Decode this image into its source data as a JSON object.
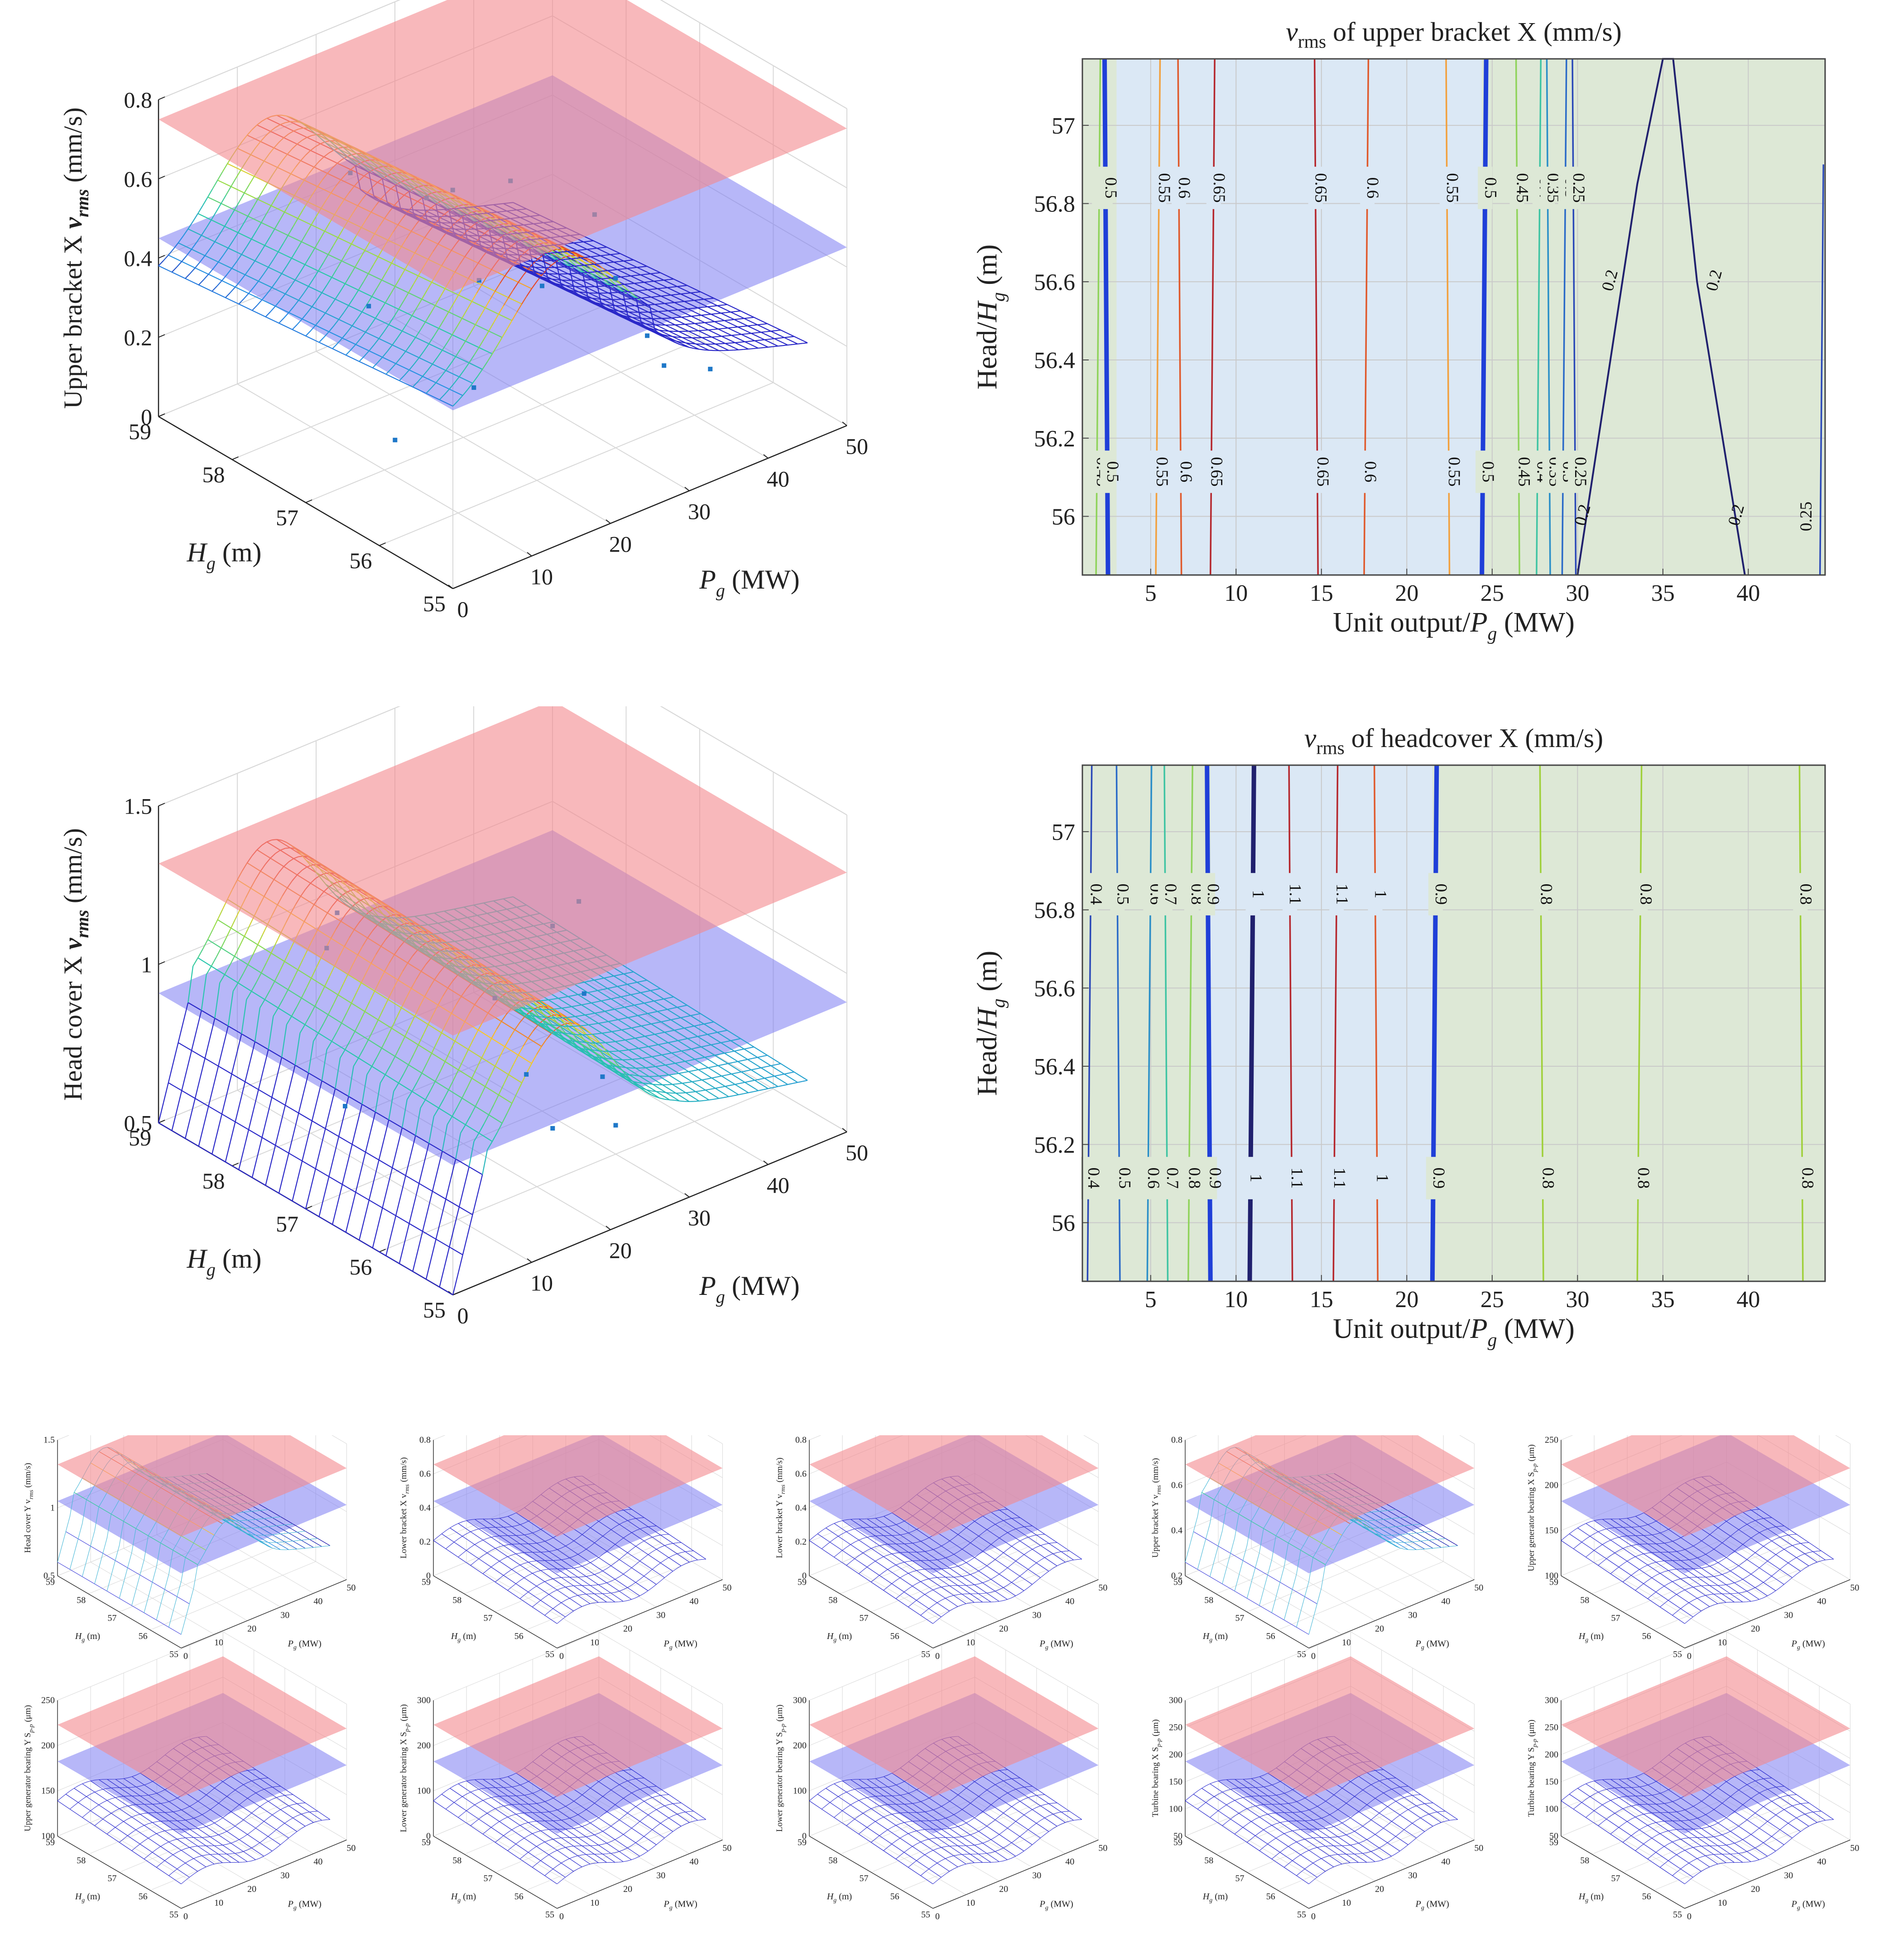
{
  "colors": {
    "upper_plane": "#f4888d",
    "lower_plane": "#7b7cf2",
    "dot": "#1f78c8",
    "blue_region": "#dbe8f5",
    "green_region": "#dde8d6",
    "bold_line": "#1f3fd8"
  },
  "chart_data": [
    {
      "id": "surf_upper_bracket_x",
      "type": "surface",
      "zlabel_prefix": "Upper bracket X ",
      "zlabel_sym": "v",
      "zlabel_sub": "rms",
      "zlabel_suffix": " (mm/s)",
      "xlabel_sym": "H",
      "xlabel_sub": "g",
      "xlabel_unit": " (m)",
      "ylabel_sym": "P",
      "ylabel_sub": "g",
      "ylabel_unit": " (MW)",
      "z_ticks": [
        "0",
        "0.2",
        "0.4",
        "0.6",
        "0.8"
      ],
      "h_ticks": [
        "59",
        "58",
        "57",
        "56",
        "55"
      ],
      "p_ticks": [
        "0",
        "10",
        "20",
        "30",
        "40",
        "50"
      ],
      "upper_limit": 0.75,
      "lower_limit": 0.45,
      "zlim": [
        0,
        0.8
      ]
    },
    {
      "id": "contour_upper_bracket_x",
      "type": "contour",
      "title_sym": "v",
      "title_sub": "rms",
      "title_rest": " of upper bracket X (mm/s)",
      "xlabel_prefix": "Unit output/",
      "xlabel_sym": "P",
      "xlabel_sub": "g",
      "xlabel_unit": " (MW)",
      "ylabel_prefix": "Head/",
      "ylabel_sym": "H",
      "ylabel_sub": "g",
      "ylabel_unit": " (m)",
      "xlim": [
        1,
        44.5
      ],
      "ylim": [
        55.85,
        57.17
      ],
      "x_ticks": [
        "5",
        "10",
        "15",
        "20",
        "25",
        "30",
        "35",
        "40"
      ],
      "y_ticks": [
        "56",
        "56.2",
        "56.4",
        "56.6",
        "56.8",
        "57"
      ],
      "blue_region": [
        3,
        24.4
      ],
      "contours": [
        {
          "x": 1.8,
          "label": "0.45",
          "color": "#8fd35a"
        },
        {
          "x": 2.5,
          "label": "0.5",
          "color": "#1f3fd8",
          "bold": true
        },
        {
          "x": 5.3,
          "label": "0.55",
          "color": "#f2a03d"
        },
        {
          "x": 6.8,
          "label": "0.6",
          "color": "#e0592b"
        },
        {
          "x": 8.5,
          "label": "0.65",
          "color": "#b5262c"
        },
        {
          "x": 14.8,
          "label": "0.65",
          "color": "#b5262c"
        },
        {
          "x": 17.5,
          "label": "0.6",
          "color": "#e0592b"
        },
        {
          "x": 22.5,
          "label": "0.55",
          "color": "#f2a03d"
        },
        {
          "x": 24.4,
          "label": "0.5",
          "color": "#1f3fd8",
          "bold": true
        },
        {
          "x": 26.6,
          "label": "0.45",
          "color": "#8fd35a"
        },
        {
          "x": 27.6,
          "label": "0.4",
          "color": "#3fc4a3"
        },
        {
          "x": 28.4,
          "label": "0.35",
          "color": "#2a8fc8"
        },
        {
          "x": 29.1,
          "label": "0.3",
          "color": "#2a6ac8"
        },
        {
          "x": 29.9,
          "label": "0.25",
          "color": "#2a48b8"
        }
      ],
      "peak_contour": {
        "label": "0.2",
        "color": "#20206e"
      },
      "edge_contour": {
        "label": "0.25",
        "color": "#2a48b8"
      }
    },
    {
      "id": "surf_head_cover_x",
      "type": "surface",
      "zlabel_prefix": "Head cover X ",
      "zlabel_sym": "v",
      "zlabel_sub": "rms",
      "zlabel_suffix": " (mm/s)",
      "xlabel_sym": "H",
      "xlabel_sub": "g",
      "xlabel_unit": " (m)",
      "ylabel_sym": "P",
      "ylabel_sub": "g",
      "ylabel_unit": " (MW)",
      "z_ticks": [
        "0.5",
        "1",
        "1.5"
      ],
      "h_ticks": [
        "59",
        "58",
        "57",
        "56",
        "55"
      ],
      "p_ticks": [
        "0",
        "10",
        "20",
        "30",
        "40",
        "50"
      ],
      "upper_limit": 1.3,
      "lower_limit": 0.85,
      "zlim": [
        0.4,
        1.5
      ]
    },
    {
      "id": "contour_headcover_x",
      "type": "contour",
      "title_sym": "v",
      "title_sub": "rms",
      "title_rest": " of headcover X (mm/s)",
      "xlabel_prefix": "Unit output/",
      "xlabel_sym": "P",
      "xlabel_sub": "g",
      "xlabel_unit": " (MW)",
      "ylabel_prefix": "Head/",
      "ylabel_sym": "H",
      "ylabel_sub": "g",
      "ylabel_unit": " (m)",
      "xlim": [
        1,
        44.5
      ],
      "ylim": [
        55.85,
        57.17
      ],
      "x_ticks": [
        "5",
        "10",
        "15",
        "20",
        "25",
        "30",
        "35",
        "40"
      ],
      "y_ticks": [
        "56",
        "56.2",
        "56.4",
        "56.6",
        "56.8",
        "57"
      ],
      "blue_region": [
        8.5,
        21.5
      ],
      "contours": [
        {
          "x": 1.3,
          "label": "0.4",
          "color": "#2a48b8"
        },
        {
          "x": 3.2,
          "label": "0.5",
          "color": "#2a6ac8"
        },
        {
          "x": 4.8,
          "label": "0.6",
          "color": "#2a8fc8"
        },
        {
          "x": 6.0,
          "label": "0.7",
          "color": "#3fc4a3"
        },
        {
          "x": 7.2,
          "label": "0.8",
          "color": "#8fd35a"
        },
        {
          "x": 8.5,
          "label": "0.9",
          "color": "#1f3fd8",
          "bold": true
        },
        {
          "x": 10.8,
          "label": "1",
          "color": "#20206e",
          "bold": true
        },
        {
          "x": 13.3,
          "label": "1.1",
          "color": "#b5262c"
        },
        {
          "x": 15.7,
          "label": "1.1",
          "color": "#b5262c"
        },
        {
          "x": 18.3,
          "label": "1",
          "color": "#e0592b"
        },
        {
          "x": 21.5,
          "label": "0.9",
          "color": "#1f3fd8",
          "bold": true
        },
        {
          "x": 28.0,
          "label": "0.8",
          "color": "#9fd03a"
        },
        {
          "x": 33.5,
          "label": "0.8",
          "color": "#9fd03a"
        },
        {
          "x": 43.2,
          "label": "0.8",
          "color": "#9fd03a"
        }
      ]
    }
  ],
  "thumbnails": [
    {
      "label": "Head cover Y v",
      "sub": "rms",
      "unit": " (mm/s)",
      "z_ticks": [
        "0.5",
        "1",
        "1.5"
      ],
      "colorful": true
    },
    {
      "label": "Lower bracket X v",
      "sub": "rms",
      "unit": " (mm/s)",
      "z_ticks": [
        "0",
        "0.2",
        "0.4",
        "0.6",
        "0.8"
      ],
      "colorful": false
    },
    {
      "label": "Lower bracket Y v",
      "sub": "rms",
      "unit": " (mm/s)",
      "z_ticks": [
        "0",
        "0.2",
        "0.4",
        "0.6",
        "0.8"
      ],
      "colorful": false
    },
    {
      "label": "Upper bracket Y v",
      "sub": "rms",
      "unit": " (mm/s)",
      "z_ticks": [
        "0.2",
        "0.4",
        "0.6",
        "0.8"
      ],
      "colorful": true
    },
    {
      "label": "Upper generator bearing X S",
      "sub": "p-p",
      "unit": " (μm)",
      "z_ticks": [
        "100",
        "150",
        "200",
        "250"
      ],
      "colorful": false
    },
    {
      "label": "Upper generator bearing Y S",
      "sub": "p-p",
      "unit": " (μm)",
      "z_ticks": [
        "100",
        "150",
        "200",
        "250"
      ],
      "colorful": false
    },
    {
      "label": "Lower generator bearing X S",
      "sub": "p-p",
      "unit": " (μm)",
      "z_ticks": [
        "0",
        "100",
        "200",
        "300"
      ],
      "colorful": false
    },
    {
      "label": "Lower generator bearing Y S",
      "sub": "p-p",
      "unit": " (μm)",
      "z_ticks": [
        "0",
        "100",
        "200",
        "300"
      ],
      "colorful": false
    },
    {
      "label": "Turbine bearing X S",
      "sub": "p-p",
      "unit": " (μm)",
      "z_ticks": [
        "50",
        "100",
        "150",
        "200",
        "250",
        "300"
      ],
      "colorful": false
    },
    {
      "label": "Turbine bearing Y S",
      "sub": "p-p",
      "unit": " (μm)",
      "z_ticks": [
        "50",
        "100",
        "150",
        "200",
        "250",
        "300"
      ],
      "colorful": false
    }
  ],
  "thumb_axes": {
    "h_sym": "H",
    "h_sub": "g",
    "h_unit": " (m)",
    "p_sym": "P",
    "p_sub": "g",
    "p_unit": " (MW)",
    "h_ticks": [
      "59",
      "58",
      "57",
      "56",
      "55"
    ],
    "p_ticks": [
      "0",
      "10",
      "20",
      "30",
      "40",
      "50"
    ]
  }
}
